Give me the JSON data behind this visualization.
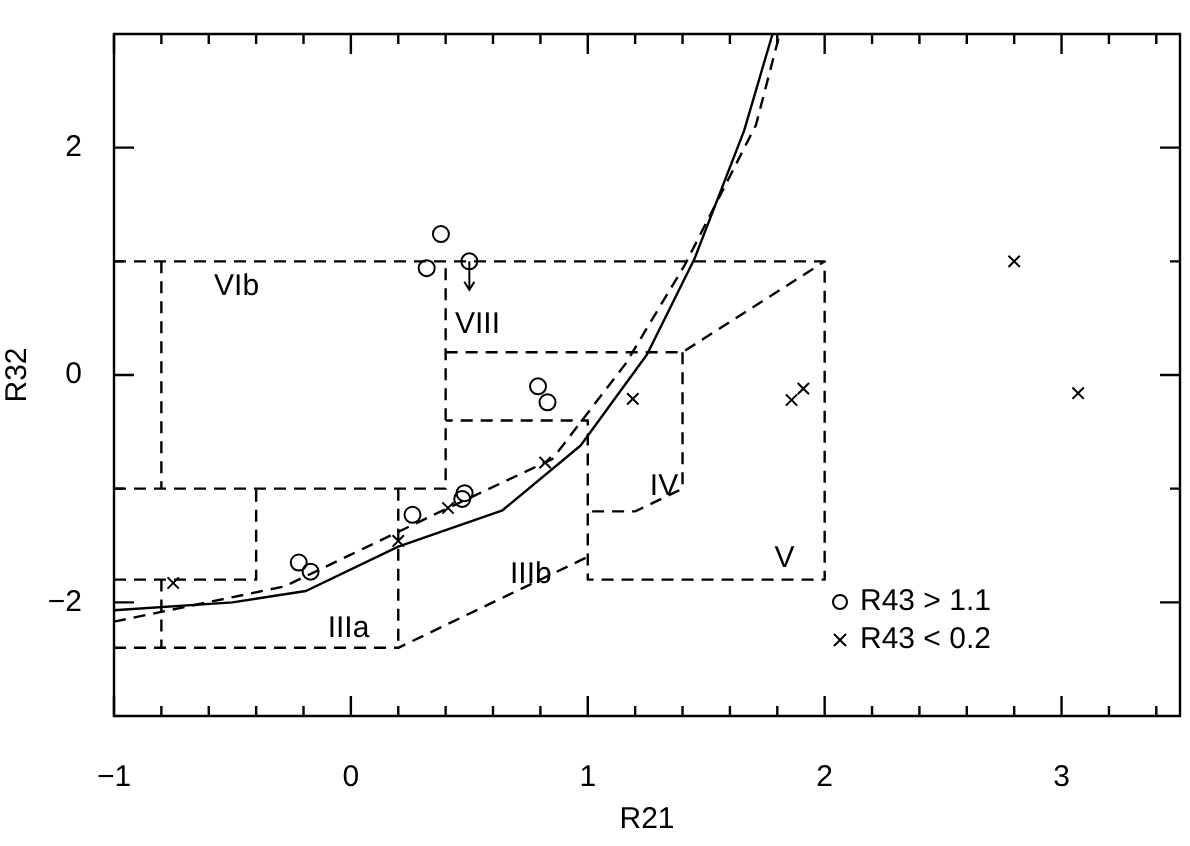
{
  "chart_data": {
    "type": "scatter",
    "xlabel": "R21",
    "ylabel": "R32",
    "xlim": [
      -1,
      3.5
    ],
    "ylim": [
      -3,
      3
    ],
    "xticks": [
      {
        "value": -1,
        "label": "−1"
      },
      {
        "value": -0.8,
        "label": null
      },
      {
        "value": -0.6,
        "label": null
      },
      {
        "value": -0.4,
        "label": null
      },
      {
        "value": -0.2,
        "label": null
      },
      0,
      {
        "value": 0.2,
        "label": null
      },
      {
        "value": 0.4,
        "label": null
      },
      {
        "value": 0.6,
        "label": null
      },
      {
        "value": 0.8,
        "label": null
      },
      1,
      {
        "value": 1.2,
        "label": null
      },
      {
        "value": 1.4,
        "label": null
      },
      {
        "value": 1.6,
        "label": null
      },
      {
        "value": 1.8,
        "label": null
      },
      2,
      {
        "value": 2.2,
        "label": null
      },
      {
        "value": 2.4,
        "label": null
      },
      {
        "value": 2.6,
        "label": null
      },
      {
        "value": 2.8,
        "label": null
      },
      3,
      {
        "value": 3.2,
        "label": null
      },
      {
        "value": 3.4,
        "label": null
      }
    ],
    "yticks": [
      {
        "value": -2,
        "label": "−2"
      },
      {
        "value": -1,
        "label": null
      },
      0,
      {
        "value": 1,
        "label": null
      },
      2
    ],
    "legend": "bottom right",
    "series": [
      {
        "name": "R43 > 1.1",
        "type": "scatter",
        "marker": "circle",
        "color": "#000000",
        "x": [
          0.38,
          0.32,
          0.5,
          0.79,
          0.83,
          0.26,
          0.48,
          0.47,
          -0.22,
          -0.17
        ],
        "values": [
          1.24,
          0.94,
          1.0,
          -0.1,
          -0.24,
          -1.23,
          -1.04,
          -1.09,
          -1.65,
          -1.73
        ],
        "errors": [
          null,
          null,
          [
            0.75,
            1.0
          ],
          null,
          null,
          null,
          null,
          null,
          null,
          null
        ]
      },
      {
        "name": "R43 < 0.2",
        "type": "scatter",
        "marker": "cross",
        "color": "#000000",
        "x": [
          -0.75,
          0.2,
          0.41,
          0.82,
          1.19,
          1.86,
          1.91,
          2.8,
          3.07
        ],
        "values": [
          -1.83,
          -1.46,
          -1.17,
          -0.77,
          -0.21,
          -0.22,
          -0.12,
          1.0,
          -0.16
        ]
      },
      {
        "type": "line",
        "marker": "none",
        "line_style": "solid",
        "color": "#000000",
        "x": [
          -1,
          -0.5,
          -0.19,
          0.2,
          0.64,
          0.97,
          1.25,
          1.45,
          1.66,
          1.78
        ],
        "values": [
          -2.07,
          -2.0,
          -1.9,
          -1.51,
          -1.19,
          -0.62,
          0.18,
          1.02,
          2.15,
          3.0
        ]
      },
      {
        "type": "line",
        "marker": "none",
        "line_style": "dashed",
        "color": "#000000",
        "x": [
          -1,
          -0.28,
          0.39,
          0.85,
          1.16,
          1.41,
          1.71,
          1.81
        ],
        "values": [
          -2.17,
          -1.86,
          -1.19,
          -0.74,
          0.1,
          0.97,
          2.2,
          3.0
        ]
      },
      {
        "type": "line",
        "marker": "none",
        "line_style": "dashed",
        "color": "#000000",
        "x": [
          -1,
          2,
          2,
          1,
          1,
          0.4
        ],
        "values": [
          1,
          1,
          -1.8,
          -1.8,
          -0.4,
          -0.4
        ]
      },
      {
        "type": "line",
        "marker": "none",
        "line_style": "dashed",
        "color": "#000000",
        "x": [
          -0.8,
          -0.8
        ],
        "values": [
          1,
          -1
        ]
      },
      {
        "type": "line",
        "marker": "none",
        "line_style": "dashed",
        "color": "#000000",
        "x": [
          -1,
          0.4,
          0.4
        ],
        "values": [
          -1,
          -1,
          1
        ]
      },
      {
        "type": "line",
        "marker": "none",
        "line_style": "dashed",
        "color": "#000000",
        "x": [
          0.4,
          1.4,
          2
        ],
        "values": [
          0.2,
          0.2,
          1
        ]
      },
      {
        "type": "line",
        "marker": "none",
        "line_style": "dashed",
        "color": "#000000",
        "x": [
          1.4,
          1.4,
          1.2,
          1
        ],
        "values": [
          0.2,
          -1,
          -1.2,
          -1.2
        ]
      },
      {
        "type": "line",
        "marker": "none",
        "line_style": "dashed",
        "color": "#000000",
        "x": [
          -1,
          -0.4,
          -0.4
        ],
        "values": [
          -1.8,
          -1.8,
          -1
        ]
      },
      {
        "type": "line",
        "marker": "none",
        "line_style": "dashed",
        "color": "#000000",
        "x": [
          -0.8,
          -0.8
        ],
        "values": [
          -1.8,
          -2.4
        ]
      },
      {
        "type": "line",
        "marker": "none",
        "line_style": "dashed",
        "color": "#000000",
        "x": [
          -1,
          0.2,
          1
        ],
        "values": [
          -2.4,
          -2.4,
          -1.6
        ]
      },
      {
        "type": "line",
        "marker": "none",
        "line_style": "dashed",
        "color": "#000000",
        "x": [
          0.2,
          0.2
        ],
        "values": [
          -1,
          -2.4
        ]
      }
    ],
    "annotations": [
      "VIb",
      "VIII",
      "IV",
      "IIIb",
      "IIIa",
      "V"
    ]
  }
}
